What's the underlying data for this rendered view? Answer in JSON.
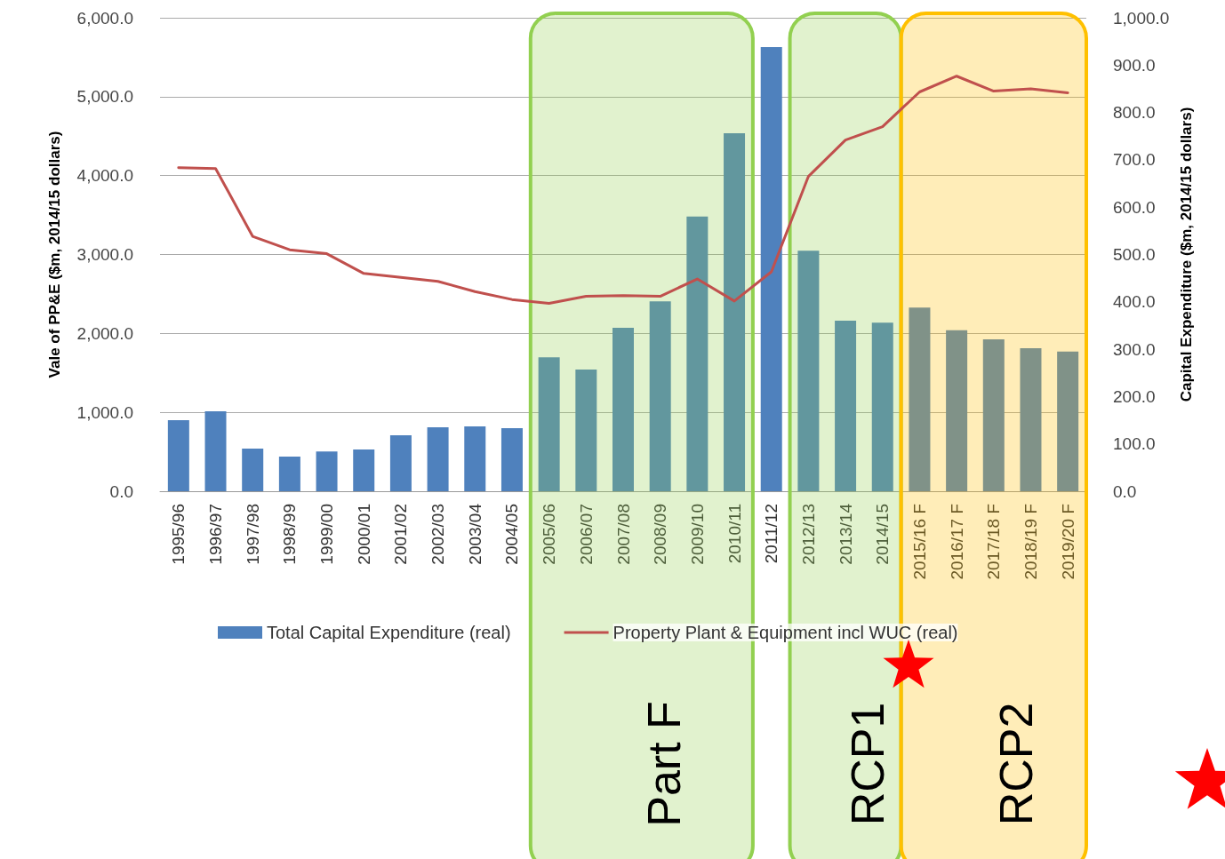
{
  "chart_data": {
    "type": "bar",
    "ylabel": "Vale of PP&E ($m, 2014/15 dollars)",
    "y2label": "Capital Expenditure ($m, 2014/15 dollars)",
    "categories": [
      "1995/96",
      "1996/97",
      "1997/98",
      "1998/99",
      "1999/00",
      "2000/01",
      "2001/02",
      "2002/03",
      "2003/04",
      "2004/05",
      "2005/06",
      "2006/07",
      "2007/08",
      "2008/09",
      "2009/10",
      "2010/11",
      "2011/12",
      "2012/13",
      "2013/14",
      "2014/15",
      "2015/16 F",
      "2016/17 F",
      "2017/18 F",
      "2018/19 F",
      "2019/20 F"
    ],
    "series": [
      {
        "name": "Total Capital Expenditure (real)",
        "axis": "y2",
        "color": "#4f81bd",
        "values": [
          150,
          169,
          90,
          73,
          84,
          88,
          118,
          135,
          137,
          133,
          283,
          257,
          345,
          401,
          580,
          756,
          938,
          508,
          360,
          356,
          388,
          340,
          321,
          302,
          295
        ]
      },
      {
        "name": "Property Plant & Equipment incl WUC (real)",
        "type": "line",
        "axis": "y",
        "color": "#c0504d",
        "values": [
          4100,
          4090,
          3230,
          3060,
          3010,
          2760,
          2710,
          2660,
          2530,
          2430,
          2380,
          2470,
          2480,
          2470,
          2690,
          2410,
          2780,
          3990,
          4450,
          4620,
          5060,
          5260,
          5070,
          5100,
          5050
        ]
      }
    ],
    "ylim": [
      0,
      6000
    ],
    "yticks": [
      {
        "value": 0,
        "label": "0.0"
      },
      {
        "value": 1000,
        "label": "1,000.0"
      },
      {
        "value": 2000,
        "label": "2,000.0"
      },
      {
        "value": 3000,
        "label": "3,000.0"
      },
      {
        "value": 4000,
        "label": "4,000.0"
      },
      {
        "value": 5000,
        "label": "5,000.0"
      },
      {
        "value": 6000,
        "label": "6,000.0"
      }
    ],
    "y2lim": [
      0,
      1000
    ],
    "y2ticks": [
      {
        "value": 0,
        "label": "0.0"
      },
      {
        "value": 100,
        "label": "100.0"
      },
      {
        "value": 200,
        "label": "200.0"
      },
      {
        "value": 300,
        "label": "300.0"
      },
      {
        "value": 400,
        "label": "400.0"
      },
      {
        "value": 500,
        "label": "500.0"
      },
      {
        "value": 600,
        "label": "600.0"
      },
      {
        "value": 700,
        "label": "700.0"
      },
      {
        "value": 800,
        "label": "800.0"
      },
      {
        "value": 900,
        "label": "900.0"
      },
      {
        "value": 1000,
        "label": "1,000.0"
      }
    ],
    "bands": [
      {
        "axis": "x",
        "from": "2005/06",
        "to": "2010/11",
        "label": "Part F",
        "color": "#92d050"
      },
      {
        "axis": "x",
        "from": "2012/13",
        "to": "2014/15",
        "label": "RCP1",
        "color": "#92d050"
      },
      {
        "axis": "x",
        "from": "2015/16 F",
        "to": "2019/20 F",
        "label": "RCP2",
        "color": "#ffc000"
      }
    ],
    "grid": "y",
    "legend": "bottom",
    "marker": "none",
    "line_style": "solid"
  }
}
